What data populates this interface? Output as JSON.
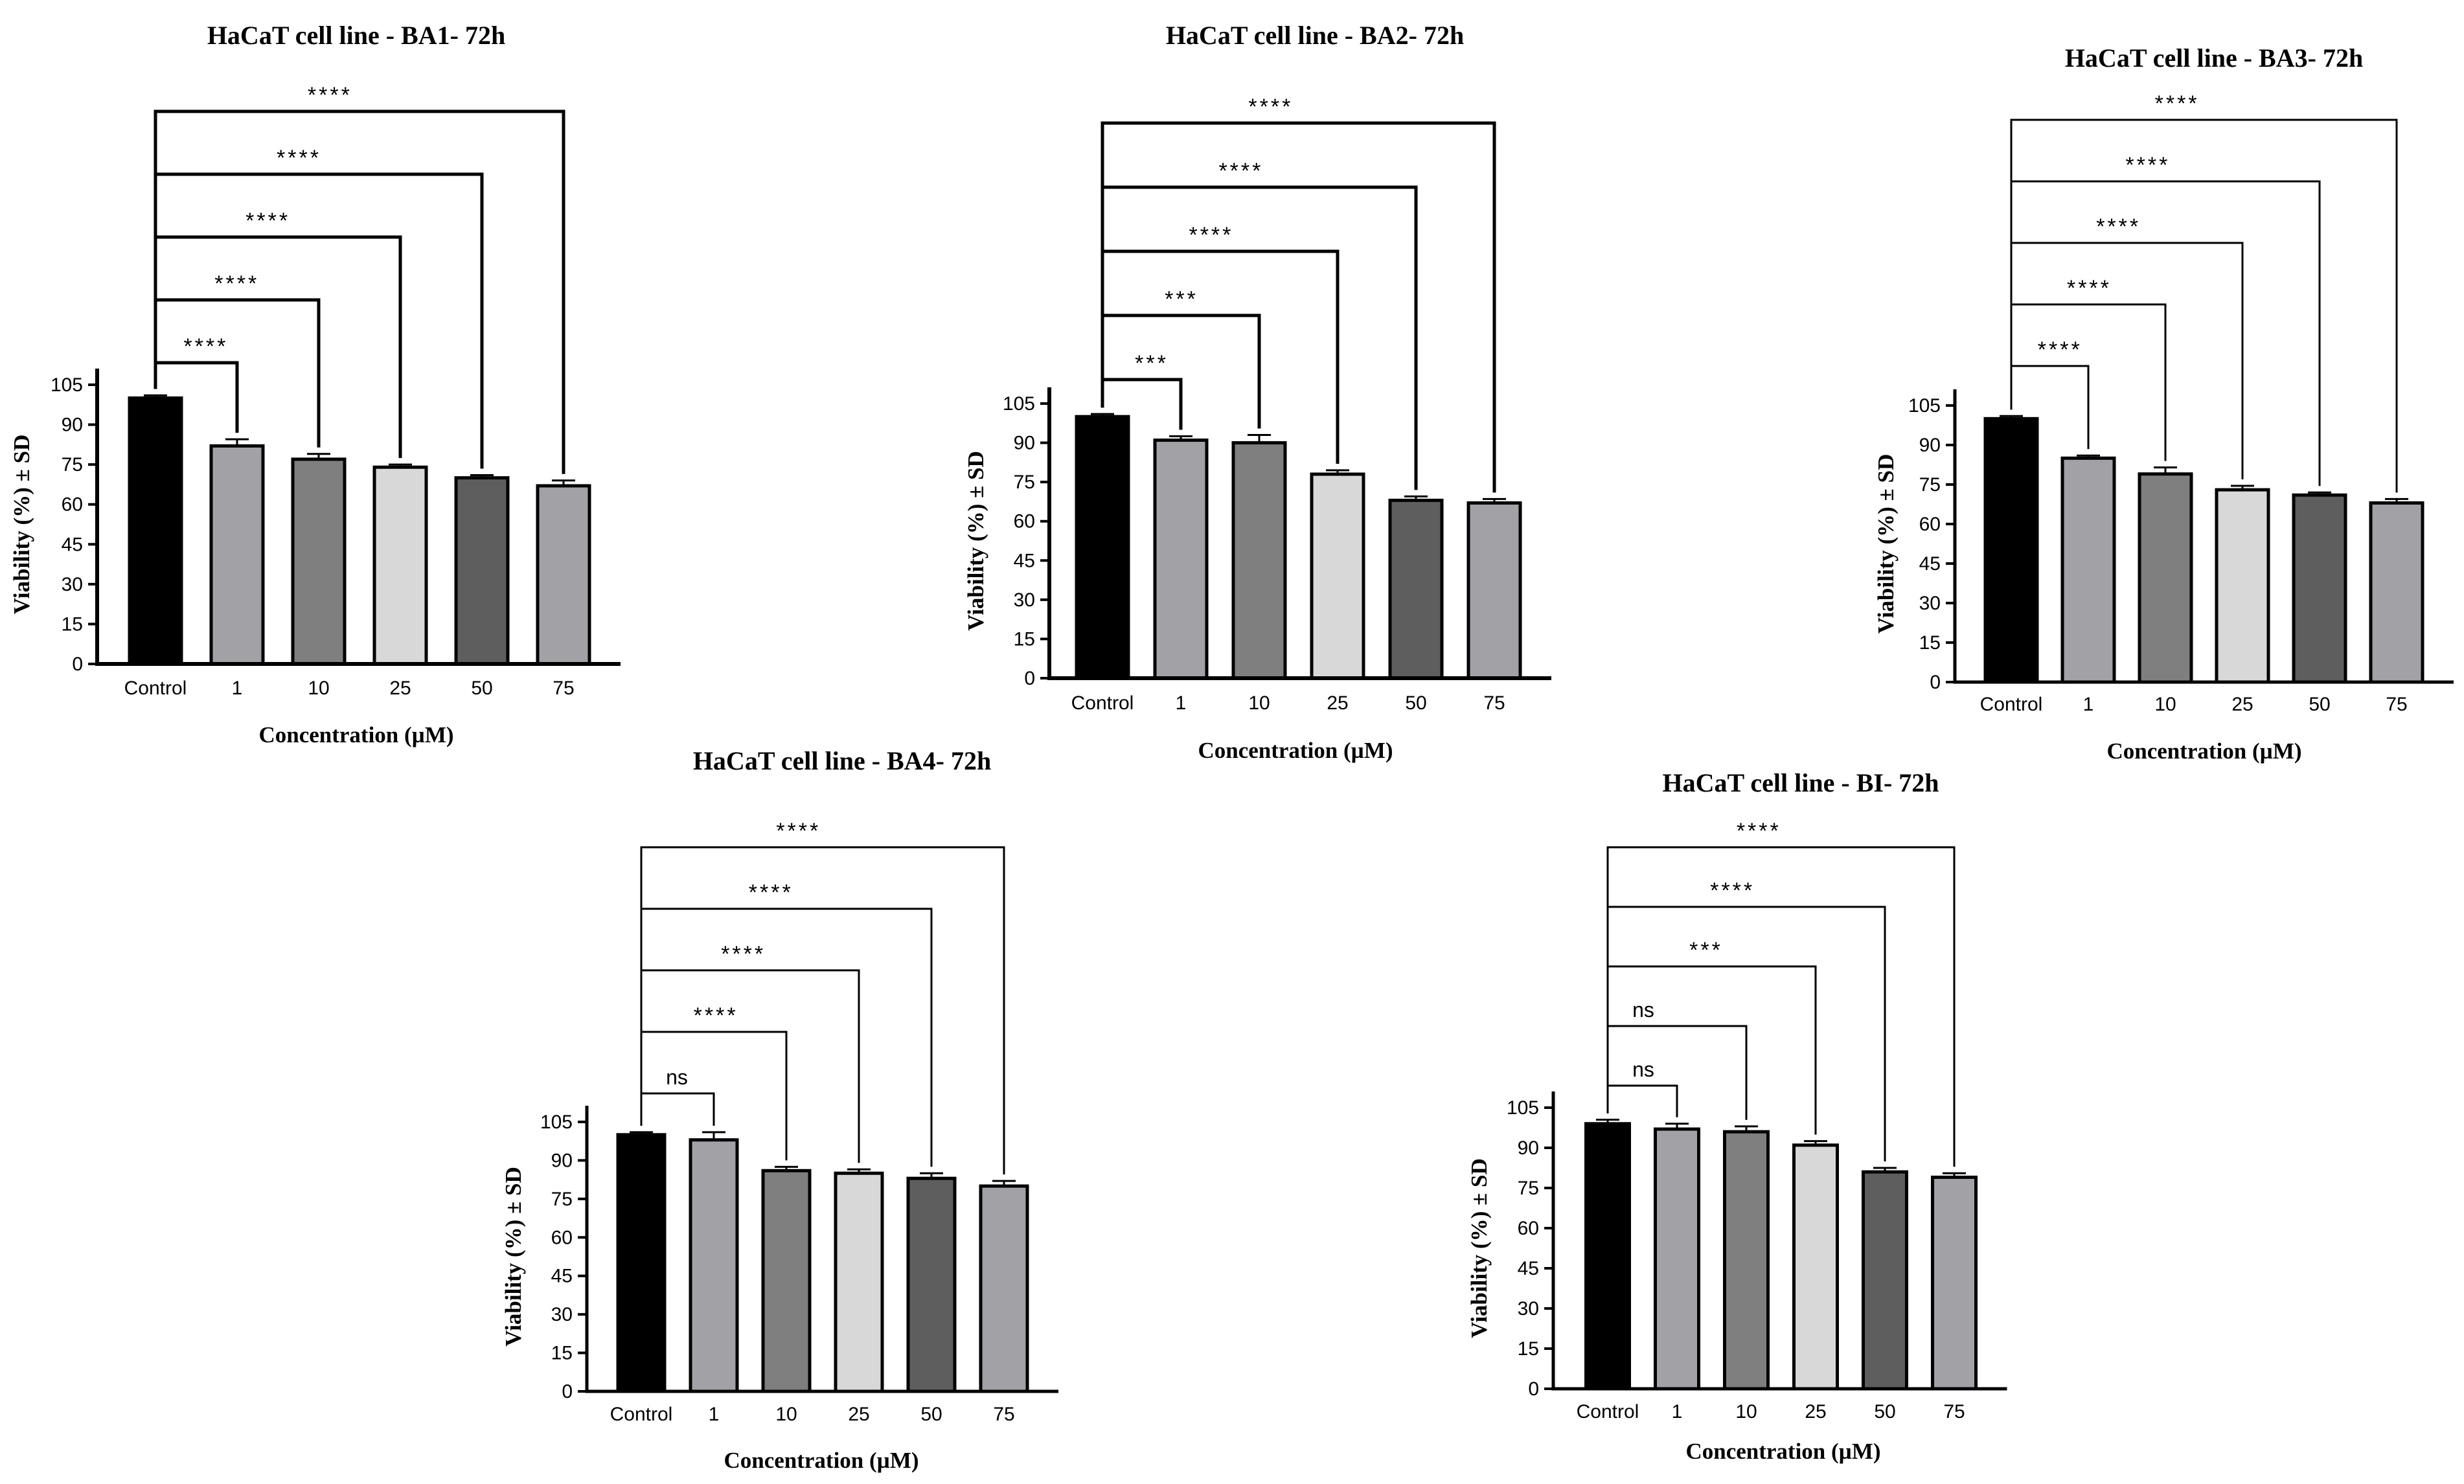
{
  "figure": {
    "description_colors": {
      "control": "#000000",
      "c1": "#a2a2a6",
      "c10": "#7f7f7f",
      "c25": "#d8d8d8",
      "c50": "#5e5e5e",
      "c75": "#a2a2a6"
    }
  },
  "chart_data": [
    {
      "type": "bar",
      "title": "HaCaT cell line - BA1- 72h",
      "xlabel": "Concentration (µM)",
      "ylabel": "Viability (%) ± SD",
      "ylim": [
        0,
        105
      ],
      "yticks": [
        "0",
        "15",
        "30",
        "45",
        "60",
        "75",
        "90",
        "105"
      ],
      "categories": [
        "Control",
        "1",
        "10",
        "25",
        "50",
        "75"
      ],
      "values": [
        100,
        82,
        77,
        74,
        70,
        67
      ],
      "errors": [
        1,
        2.5,
        2,
        1,
        1,
        2
      ],
      "colors": [
        "#000000",
        "#a2a2a6",
        "#7f7f7f",
        "#d8d8d8",
        "#5e5e5e",
        "#a2a2a6"
      ],
      "significance": [
        "****",
        "****",
        "****",
        "****",
        "****"
      ]
    },
    {
      "type": "bar",
      "title": "HaCaT cell line - BA2- 72h",
      "xlabel": "Concentration (µM)",
      "ylabel": "Viability (%) ± SD",
      "ylim": [
        0,
        105
      ],
      "yticks": [
        "0",
        "15",
        "30",
        "45",
        "60",
        "75",
        "90",
        "105"
      ],
      "categories": [
        "Control",
        "1",
        "10",
        "25",
        "50",
        "75"
      ],
      "values": [
        100,
        91,
        90,
        78,
        68,
        67
      ],
      "errors": [
        1,
        1.5,
        3,
        1.5,
        1.5,
        1.5
      ],
      "colors": [
        "#000000",
        "#a2a2a6",
        "#7f7f7f",
        "#d8d8d8",
        "#5e5e5e",
        "#a2a2a6"
      ],
      "significance": [
        "***",
        "***",
        "****",
        "****",
        "****"
      ]
    },
    {
      "type": "bar",
      "title": "HaCaT cell line - BA3- 72h",
      "xlabel": "Concentration (µM)",
      "ylabel": "Viability (%) ± SD",
      "ylim": [
        0,
        105
      ],
      "yticks": [
        "0",
        "15",
        "30",
        "45",
        "60",
        "75",
        "90",
        "105"
      ],
      "categories": [
        "Control",
        "1",
        "10",
        "25",
        "50",
        "75"
      ],
      "values": [
        100,
        85,
        79,
        73,
        71,
        68
      ],
      "errors": [
        1,
        1,
        2.5,
        1.5,
        1,
        1.5
      ],
      "colors": [
        "#000000",
        "#a2a2a6",
        "#7f7f7f",
        "#d8d8d8",
        "#5e5e5e",
        "#a2a2a6"
      ],
      "significance": [
        "****",
        "****",
        "****",
        "****",
        "****"
      ]
    },
    {
      "type": "bar",
      "title": "HaCaT cell line - BA4- 72h",
      "xlabel": "Concentration (µM)",
      "ylabel": "Viability (%) ± SD",
      "ylim": [
        0,
        105
      ],
      "yticks": [
        "0",
        "15",
        "30",
        "45",
        "60",
        "75",
        "90",
        "105"
      ],
      "categories": [
        "Control",
        "1",
        "10",
        "25",
        "50",
        "75"
      ],
      "values": [
        100,
        98,
        86,
        85,
        83,
        80
      ],
      "errors": [
        1,
        3,
        1.5,
        1.5,
        2,
        2
      ],
      "colors": [
        "#000000",
        "#a2a2a6",
        "#7f7f7f",
        "#d8d8d8",
        "#5e5e5e",
        "#a2a2a6"
      ],
      "significance": [
        "ns",
        "****",
        "****",
        "****",
        "****"
      ]
    },
    {
      "type": "bar",
      "title": "HaCaT cell line - BI- 72h",
      "xlabel": "Concentration (µM)",
      "ylabel": "Viability (%) ± SD",
      "ylim": [
        0,
        105
      ],
      "yticks": [
        "0",
        "15",
        "30",
        "45",
        "60",
        "75",
        "90",
        "105"
      ],
      "categories": [
        "Control",
        "1",
        "10",
        "25",
        "50",
        "75"
      ],
      "values": [
        99,
        97,
        96,
        91,
        81,
        79
      ],
      "errors": [
        1.5,
        2,
        2,
        1.5,
        1.5,
        1.5
      ],
      "colors": [
        "#000000",
        "#a2a2a6",
        "#7f7f7f",
        "#d8d8d8",
        "#5e5e5e",
        "#a2a2a6"
      ],
      "significance": [
        "ns",
        "ns",
        "***",
        "****",
        "****"
      ]
    }
  ]
}
